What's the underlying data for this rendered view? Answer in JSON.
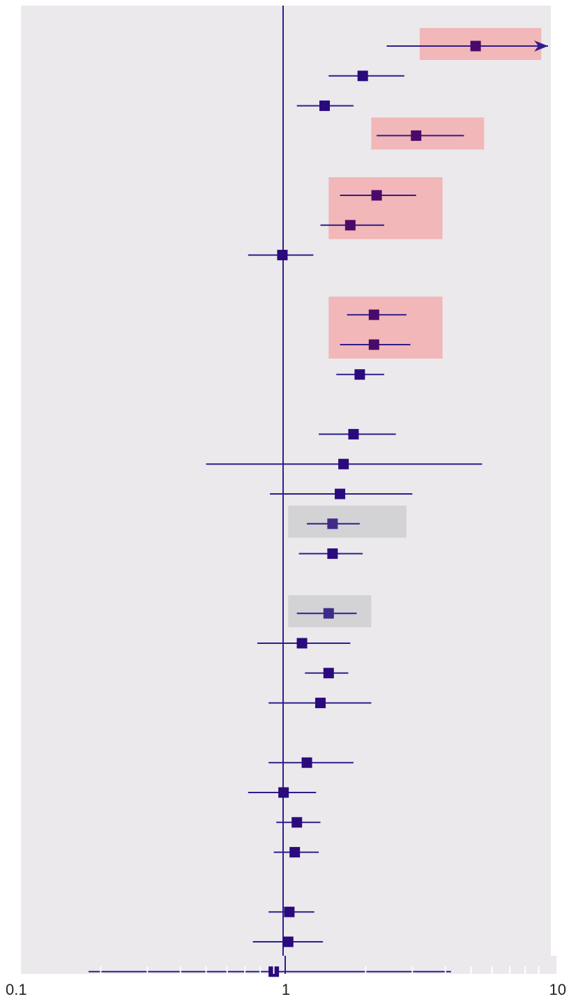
{
  "chart_data": {
    "type": "forest",
    "title": "",
    "xlabel": "",
    "ylabel": "",
    "x_scale": "log",
    "xlim": [
      0.1,
      10
    ],
    "reference_line": 1,
    "x_ticks": [
      {
        "value": 0.1,
        "label": "0.1"
      },
      {
        "value": 1,
        "label": "1"
      },
      {
        "value": 10,
        "label": "10"
      }
    ],
    "grid": false,
    "colors": {
      "panel_background": "#ebe9ec",
      "marker": "#2a0a7c",
      "highlight_marker": "#4a0a6a",
      "grey_highlight_marker": "#3f2a8a",
      "whisker": "#2f1d8c",
      "reference_line": "#2f1d8c",
      "highlight_red": "#f2b7b8",
      "highlight_grey": "#d3d2d4",
      "axis_ticks": "#ffffff",
      "tick_label": "#222222"
    },
    "rows": [
      {
        "row": 1,
        "estimate": 5.2,
        "lower": 2.4,
        "upper": 10,
        "upper_truncated": true,
        "highlight": "red"
      },
      {
        "row": 2,
        "estimate": 1.95,
        "lower": 1.45,
        "upper": 2.8,
        "highlight": "none"
      },
      {
        "row": 3,
        "estimate": 1.4,
        "lower": 1.1,
        "upper": 1.8,
        "highlight": "none"
      },
      {
        "row": 4,
        "estimate": 3.1,
        "lower": 2.2,
        "upper": 4.7,
        "highlight": "red"
      },
      {
        "row": 6,
        "estimate": 2.2,
        "lower": 1.6,
        "upper": 3.1,
        "highlight": "red"
      },
      {
        "row": 7,
        "estimate": 1.75,
        "lower": 1.35,
        "upper": 2.35,
        "highlight": "red"
      },
      {
        "row": 8,
        "estimate": 0.97,
        "lower": 0.72,
        "upper": 1.27,
        "highlight": "none"
      },
      {
        "row": 10,
        "estimate": 2.15,
        "lower": 1.7,
        "upper": 2.85,
        "highlight": "red"
      },
      {
        "row": 11,
        "estimate": 2.15,
        "lower": 1.6,
        "upper": 2.95,
        "highlight": "red"
      },
      {
        "row": 12,
        "estimate": 1.9,
        "lower": 1.55,
        "upper": 2.35,
        "highlight": "none"
      },
      {
        "row": 14,
        "estimate": 1.8,
        "lower": 1.33,
        "upper": 2.6,
        "highlight": "none"
      },
      {
        "row": 15,
        "estimate": 1.65,
        "lower": 0.5,
        "upper": 5.5,
        "highlight": "none"
      },
      {
        "row": 16,
        "estimate": 1.6,
        "lower": 0.87,
        "upper": 3.0,
        "highlight": "none"
      },
      {
        "row": 17,
        "estimate": 1.5,
        "lower": 1.2,
        "upper": 1.9,
        "highlight": "grey"
      },
      {
        "row": 18,
        "estimate": 1.5,
        "lower": 1.12,
        "upper": 1.95,
        "highlight": "none"
      },
      {
        "row": 20,
        "estimate": 1.45,
        "lower": 1.1,
        "upper": 1.85,
        "highlight": "grey"
      },
      {
        "row": 21,
        "estimate": 1.15,
        "lower": 0.78,
        "upper": 1.75,
        "highlight": "none"
      },
      {
        "row": 22,
        "estimate": 1.45,
        "lower": 1.18,
        "upper": 1.72,
        "highlight": "none"
      },
      {
        "row": 23,
        "estimate": 1.35,
        "lower": 0.86,
        "upper": 2.1,
        "highlight": "none"
      },
      {
        "row": 25,
        "estimate": 1.2,
        "lower": 0.86,
        "upper": 1.8,
        "highlight": "none"
      },
      {
        "row": 26,
        "estimate": 0.98,
        "lower": 0.72,
        "upper": 1.3,
        "highlight": "none"
      },
      {
        "row": 27,
        "estimate": 1.1,
        "lower": 0.92,
        "upper": 1.35,
        "highlight": "none"
      },
      {
        "row": 28,
        "estimate": 1.08,
        "lower": 0.9,
        "upper": 1.33,
        "highlight": "none"
      },
      {
        "row": 30,
        "estimate": 1.03,
        "lower": 0.86,
        "upper": 1.28,
        "highlight": "none"
      },
      {
        "row": 31,
        "estimate": 1.02,
        "lower": 0.75,
        "upper": 1.38,
        "highlight": "none"
      },
      {
        "row": 32,
        "estimate": 0.9,
        "lower": 0.18,
        "upper": 4.2,
        "highlight": "none"
      }
    ],
    "highlight_boxes": [
      {
        "color": "red",
        "rows": [
          1,
          1
        ],
        "x_range": [
          3.2,
          9.2
        ]
      },
      {
        "color": "red",
        "rows": [
          4,
          4
        ],
        "x_range": [
          2.1,
          5.6
        ]
      },
      {
        "color": "red",
        "rows": [
          6,
          7
        ],
        "x_range": [
          1.45,
          3.9
        ]
      },
      {
        "color": "red",
        "rows": [
          10,
          11
        ],
        "x_range": [
          1.45,
          3.9
        ]
      },
      {
        "color": "grey",
        "rows": [
          17,
          17
        ],
        "x_range": [
          1.02,
          2.85
        ]
      },
      {
        "color": "grey",
        "rows": [
          20,
          20
        ],
        "x_range": [
          1.02,
          2.1
        ]
      }
    ]
  }
}
